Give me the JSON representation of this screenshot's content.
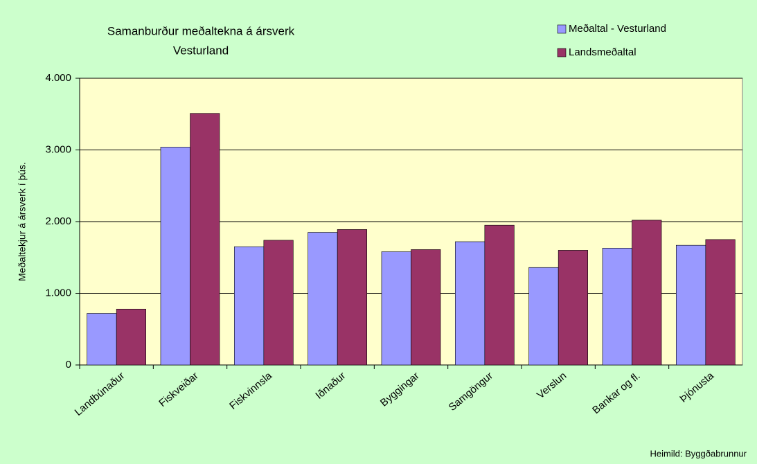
{
  "chart_data": {
    "type": "bar",
    "title": [
      "Samanburður meðaltekna á ársverk",
      "Vesturland"
    ],
    "y_label": "Meðaltekjur á ársverk í þús.",
    "source": "Heimild: Byggðabrunnur",
    "categories": [
      "Landbúnaður",
      "Fiskveiðar",
      "Fiskvinnsla",
      "Iðnaður",
      "Byggingar",
      "Samgöngur",
      "Verslun",
      "Bankar og fl.",
      "Þjónusta"
    ],
    "series": [
      {
        "name": "Meðaltal - Vesturland",
        "color": "#9999ff",
        "values": [
          720,
          3040,
          1650,
          1850,
          1580,
          1720,
          1360,
          1630,
          1670
        ]
      },
      {
        "name": "Landsmeðaltal",
        "color": "#993366",
        "values": [
          780,
          3510,
          1740,
          1890,
          1610,
          1950,
          1600,
          2020,
          1750
        ]
      }
    ],
    "ylim": [
      0,
      4000
    ],
    "yticks": [
      0,
      {
        "value": 1000,
        "label": "1.000"
      },
      {
        "value": 2000,
        "label": "2.000"
      },
      {
        "value": 3000,
        "label": "3.000"
      },
      {
        "value": 4000,
        "label": "4.000"
      }
    ],
    "grid": true,
    "legend": "top-right",
    "background": "#ccffcc",
    "plot_background": "#ffffcc"
  }
}
